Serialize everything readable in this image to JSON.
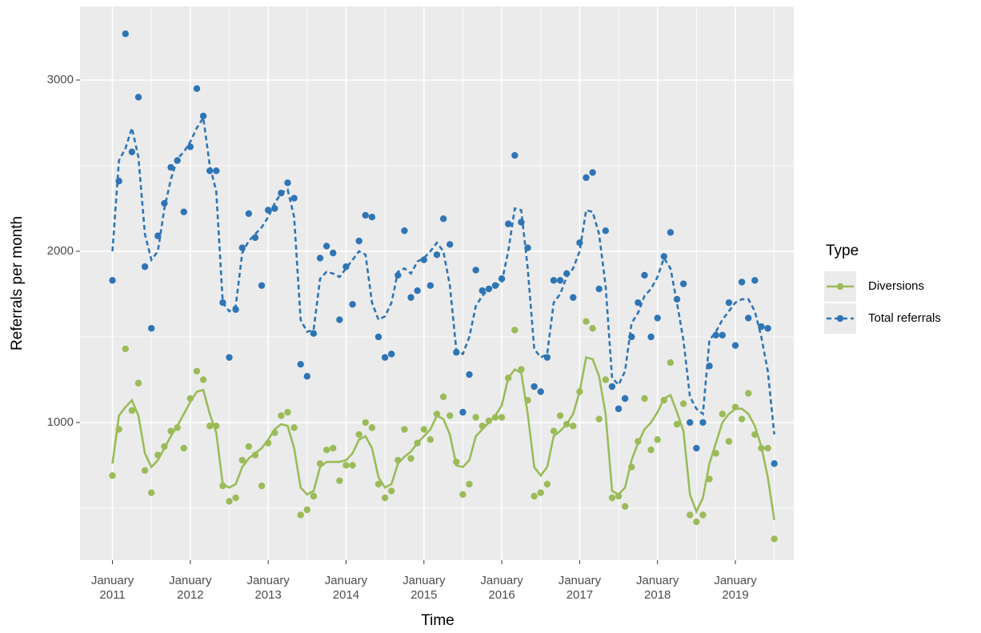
{
  "chart_data": {
    "type": "scatter",
    "x_label": "Time",
    "y_label": "Referrals per month",
    "legend_title": "Type",
    "legend_position": "right",
    "grid": true,
    "x": [
      "2011-01",
      "2011-02",
      "2011-03",
      "2011-04",
      "2011-05",
      "2011-06",
      "2011-07",
      "2011-08",
      "2011-09",
      "2011-10",
      "2011-11",
      "2011-12",
      "2012-01",
      "2012-02",
      "2012-03",
      "2012-04",
      "2012-05",
      "2012-06",
      "2012-07",
      "2012-08",
      "2012-09",
      "2012-10",
      "2012-11",
      "2012-12",
      "2013-01",
      "2013-02",
      "2013-03",
      "2013-04",
      "2013-05",
      "2013-06",
      "2013-07",
      "2013-08",
      "2013-09",
      "2013-10",
      "2013-11",
      "2013-12",
      "2014-01",
      "2014-02",
      "2014-03",
      "2014-04",
      "2014-05",
      "2014-06",
      "2014-07",
      "2014-08",
      "2014-09",
      "2014-10",
      "2014-11",
      "2014-12",
      "2015-01",
      "2015-02",
      "2015-03",
      "2015-04",
      "2015-05",
      "2015-06",
      "2015-07",
      "2015-08",
      "2015-09",
      "2015-10",
      "2015-11",
      "2015-12",
      "2016-01",
      "2016-02",
      "2016-03",
      "2016-04",
      "2016-05",
      "2016-06",
      "2016-07",
      "2016-08",
      "2016-09",
      "2016-10",
      "2016-11",
      "2016-12",
      "2017-01",
      "2017-02",
      "2017-03",
      "2017-04",
      "2017-05",
      "2017-06",
      "2017-07",
      "2017-08",
      "2017-09",
      "2017-10",
      "2017-11",
      "2017-12",
      "2018-01",
      "2018-02",
      "2018-03",
      "2018-04",
      "2018-05",
      "2018-06",
      "2018-07",
      "2018-08",
      "2018-09",
      "2018-10",
      "2018-11",
      "2018-12",
      "2019-01",
      "2019-02",
      "2019-03",
      "2019-04",
      "2019-05",
      "2019-06",
      "2019-07"
    ],
    "xlim": [
      "2010-08",
      "2019-10"
    ],
    "xticks": [
      {
        "value": "2011-01",
        "label": "January 2011"
      },
      {
        "value": "2012-01",
        "label": "January 2012"
      },
      {
        "value": "2013-01",
        "label": "January 2013"
      },
      {
        "value": "2014-01",
        "label": "January 2014"
      },
      {
        "value": "2015-01",
        "label": "January 2015"
      },
      {
        "value": "2016-01",
        "label": "January 2016"
      },
      {
        "value": "2017-01",
        "label": "January 2017"
      },
      {
        "value": "2018-01",
        "label": "January 2018"
      },
      {
        "value": "2019-01",
        "label": "January 2019"
      }
    ],
    "xminor": [
      "2011-07",
      "2012-07",
      "2013-07",
      "2014-07",
      "2015-07",
      "2016-07",
      "2017-07",
      "2018-07",
      "2019-07"
    ],
    "ylim": [
      196,
      3430
    ],
    "yticks": [
      1000,
      2000,
      3000
    ],
    "yminor": [
      500,
      1500,
      2500
    ],
    "series": [
      {
        "name": "Diversions",
        "color": "#9bbb59",
        "linetype": "solid",
        "values": [
          690,
          960,
          1430,
          1070,
          1230,
          720,
          590,
          810,
          860,
          950,
          970,
          850,
          1140,
          1300,
          1250,
          980,
          980,
          630,
          540,
          560,
          780,
          860,
          810,
          630,
          880,
          940,
          1040,
          1060,
          970,
          460,
          490,
          570,
          760,
          840,
          850,
          660,
          750,
          750,
          930,
          1000,
          970,
          640,
          560,
          600,
          780,
          960,
          790,
          880,
          960,
          900,
          1050,
          1150,
          1040,
          770,
          580,
          640,
          1030,
          980,
          1010,
          1030,
          1030,
          1260,
          1540,
          1310,
          1130,
          570,
          590,
          640,
          950,
          1040,
          990,
          980,
          1180,
          1590,
          1550,
          1020,
          1250,
          560,
          570,
          510,
          740,
          890,
          1140,
          840,
          900,
          1130,
          1350,
          990,
          1110,
          460,
          420,
          460,
          670,
          820,
          1050,
          890,
          1090,
          1020,
          1170,
          930,
          850,
          850,
          320
        ],
        "trend": [
          760,
          1040,
          1090,
          1130,
          1040,
          820,
          740,
          780,
          850,
          920,
          980,
          1050,
          1120,
          1180,
          1190,
          1050,
          940,
          640,
          620,
          640,
          740,
          790,
          820,
          850,
          900,
          960,
          990,
          980,
          850,
          620,
          580,
          600,
          740,
          770,
          770,
          770,
          780,
          820,
          900,
          920,
          850,
          680,
          620,
          640,
          760,
          800,
          830,
          880,
          920,
          960,
          1040,
          1020,
          930,
          750,
          740,
          780,
          920,
          960,
          1000,
          1040,
          1100,
          1260,
          1310,
          1290,
          1050,
          740,
          690,
          740,
          920,
          950,
          990,
          1050,
          1180,
          1380,
          1370,
          1270,
          1050,
          600,
          580,
          620,
          780,
          880,
          960,
          1000,
          1060,
          1140,
          1160,
          1060,
          950,
          580,
          480,
          560,
          760,
          880,
          1000,
          1050,
          1080,
          1080,
          1050,
          980,
          860,
          680,
          430
        ]
      },
      {
        "name": "Total referrals",
        "color": "#2e75b6",
        "linetype": "dashed",
        "values": [
          1830,
          2410,
          3270,
          2580,
          2900,
          1910,
          1550,
          2090,
          2280,
          2490,
          2530,
          2230,
          2610,
          2950,
          2790,
          2470,
          2470,
          1700,
          1380,
          1660,
          2020,
          2220,
          2080,
          1800,
          2240,
          2250,
          2340,
          2400,
          2310,
          1340,
          1270,
          1520,
          1960,
          2030,
          1990,
          1600,
          1910,
          1690,
          2060,
          2210,
          2200,
          1500,
          1380,
          1400,
          1860,
          2120,
          1730,
          1770,
          1950,
          1800,
          1980,
          2190,
          2040,
          1410,
          1060,
          1280,
          1890,
          1770,
          1780,
          1800,
          1840,
          2160,
          2560,
          2170,
          2020,
          1210,
          1180,
          1380,
          1830,
          1830,
          1870,
          1730,
          2050,
          2430,
          2460,
          1780,
          2120,
          1210,
          1080,
          1140,
          1500,
          1700,
          1860,
          1500,
          1610,
          1970,
          2110,
          1720,
          1810,
          1000,
          850,
          1000,
          1330,
          1510,
          1510,
          1700,
          1450,
          1820,
          1610,
          1830,
          1560,
          1550,
          760
        ],
        "trend": [
          2000,
          2530,
          2600,
          2720,
          2550,
          2100,
          1950,
          2000,
          2250,
          2420,
          2540,
          2580,
          2640,
          2720,
          2780,
          2500,
          2350,
          1700,
          1650,
          1680,
          1990,
          2060,
          2100,
          2140,
          2200,
          2280,
          2340,
          2360,
          2200,
          1600,
          1530,
          1540,
          1840,
          1880,
          1870,
          1850,
          1900,
          1950,
          2000,
          1980,
          1700,
          1600,
          1620,
          1700,
          1880,
          1900,
          1870,
          1940,
          1960,
          2000,
          2050,
          2000,
          1800,
          1420,
          1400,
          1500,
          1680,
          1740,
          1780,
          1790,
          1820,
          2000,
          2250,
          2240,
          1900,
          1430,
          1380,
          1400,
          1700,
          1750,
          1850,
          1900,
          2000,
          2240,
          2230,
          2100,
          1800,
          1260,
          1220,
          1300,
          1580,
          1640,
          1740,
          1780,
          1850,
          1960,
          1900,
          1700,
          1480,
          1150,
          1080,
          1050,
          1480,
          1530,
          1600,
          1650,
          1700,
          1720,
          1720,
          1650,
          1500,
          1300,
          930
        ]
      }
    ]
  }
}
